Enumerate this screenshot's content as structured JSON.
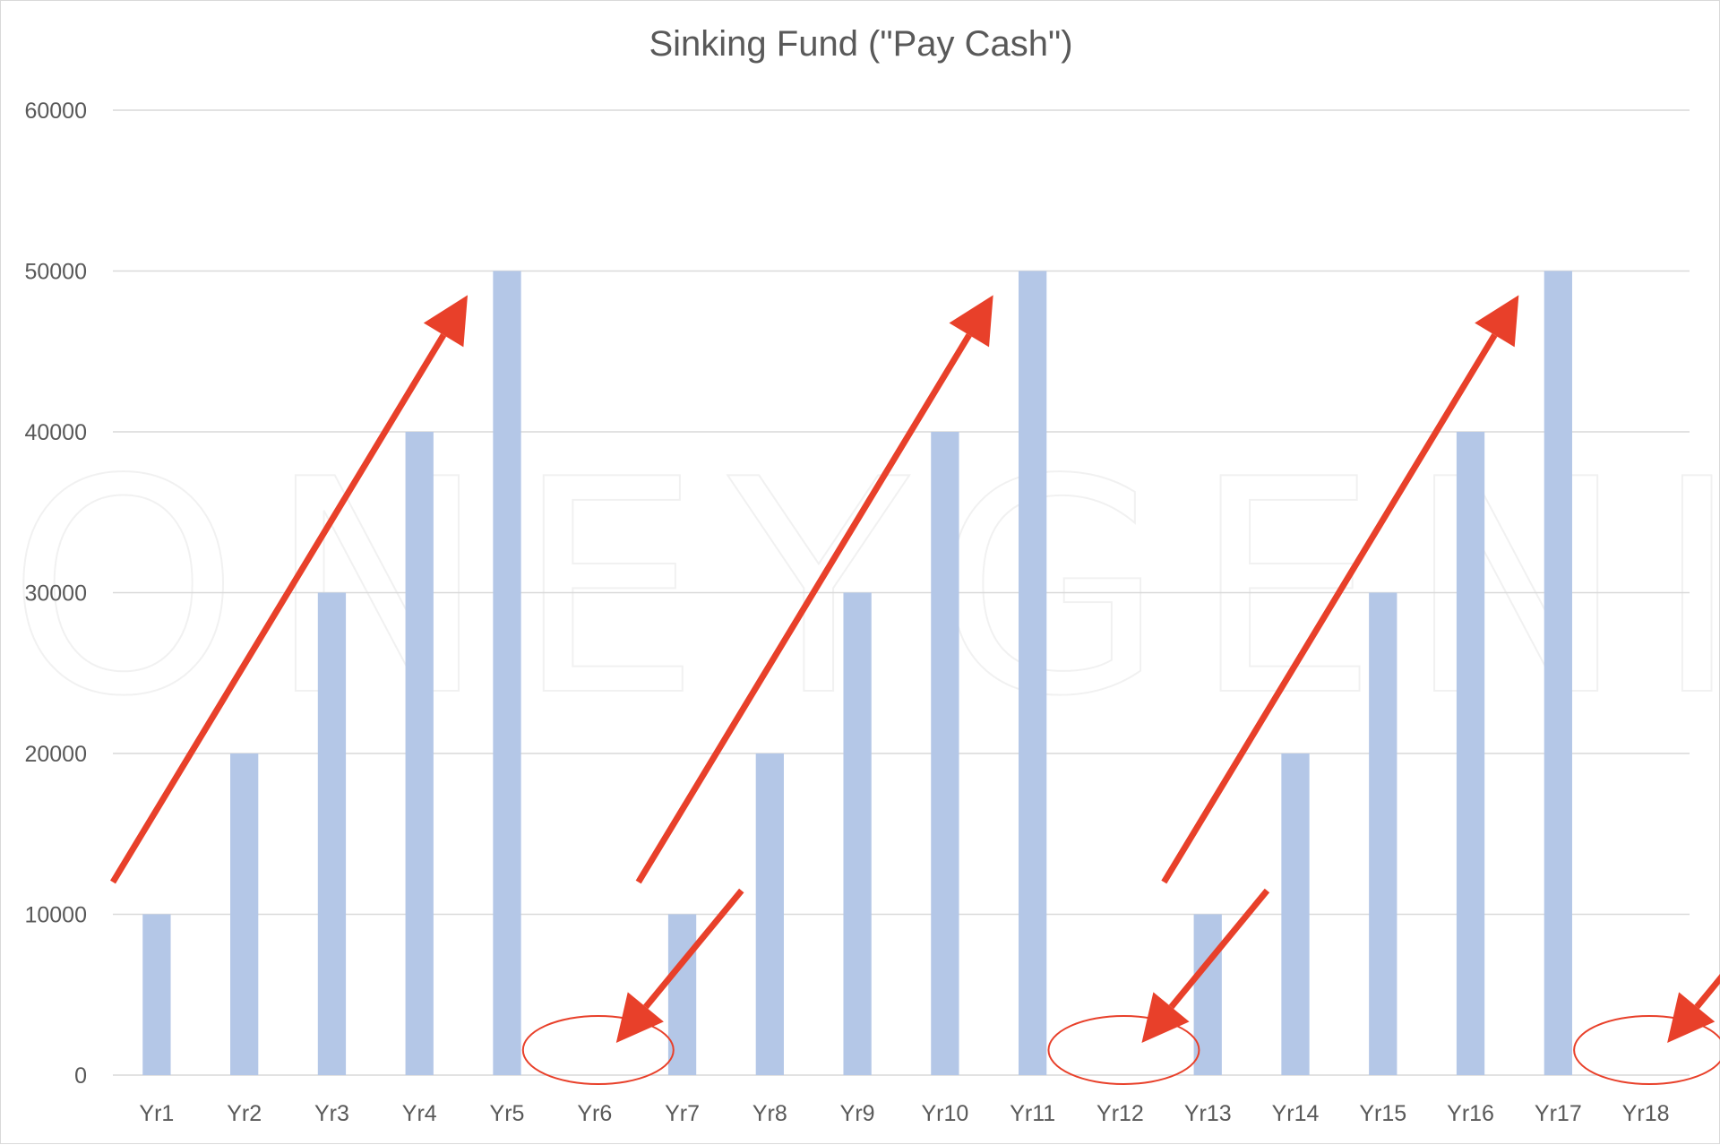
{
  "chart_data": {
    "type": "bar",
    "title": "Sinking Fund (\"Pay Cash\")",
    "categories": [
      "Yr1",
      "Yr2",
      "Yr3",
      "Yr4",
      "Yr5",
      "Yr6",
      "Yr7",
      "Yr8",
      "Yr9",
      "Yr10",
      "Yr11",
      "Yr12",
      "Yr13",
      "Yr14",
      "Yr15",
      "Yr16",
      "Yr17",
      "Yr18"
    ],
    "values": [
      10000,
      20000,
      30000,
      40000,
      50000,
      0,
      10000,
      20000,
      30000,
      40000,
      50000,
      0,
      10000,
      20000,
      30000,
      40000,
      50000,
      0
    ],
    "y_ticks": [
      "0",
      "10000",
      "20000",
      "30000",
      "40000",
      "50000",
      "60000"
    ],
    "ylim": [
      0,
      60000
    ],
    "grid": true,
    "bar_color": "#b4c7e7",
    "annotations": {
      "rising_arrows": [
        {
          "from_x": "Yr1",
          "from_y": 12000,
          "to_x": "Yr5",
          "to_y": 48500
        },
        {
          "from_x": "Yr7",
          "from_y": 12000,
          "to_x": "Yr11",
          "to_y": 48500
        },
        {
          "from_x": "Yr13",
          "from_y": 12000,
          "to_x": "Yr17",
          "to_y": 48500
        }
      ],
      "pointer_arrows_to": [
        "Yr6",
        "Yr12",
        "Yr18"
      ],
      "circled": [
        "Yr6",
        "Yr12",
        "Yr18"
      ],
      "arrow_color": "#e8402a"
    },
    "watermark": "MONEYGENIX"
  }
}
